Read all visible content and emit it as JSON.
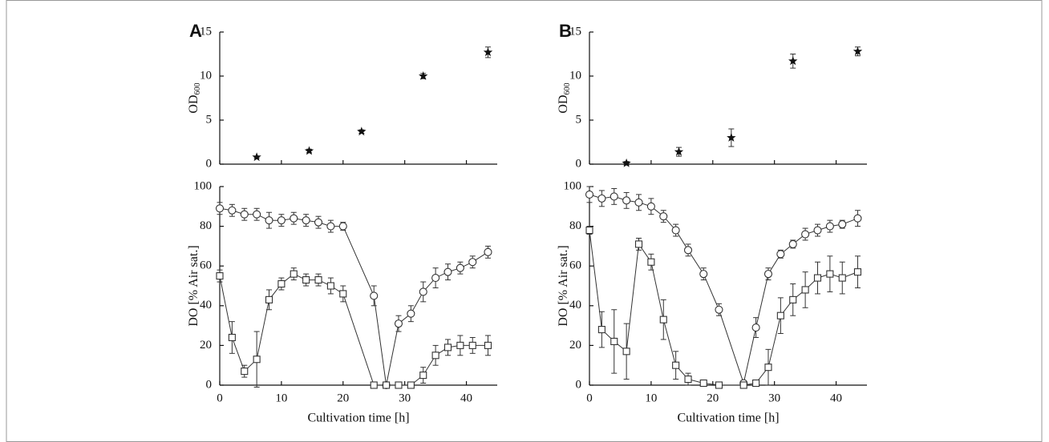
{
  "chart_data": [
    {
      "type": "scatter",
      "panel_label": "A",
      "ylabel": "OD",
      "ylabel_subscript": "600",
      "xlim": [
        0,
        45
      ],
      "xticks": [
        0,
        10,
        20,
        30,
        40
      ],
      "ylim": [
        0,
        15
      ],
      "yticks": [
        0,
        5,
        10,
        15
      ],
      "x": [
        6,
        14.5,
        23,
        33,
        43.5
      ],
      "series": [
        {
          "marker": "star",
          "color": "#111111",
          "values": [
            0.8,
            1.5,
            3.7,
            10.0,
            12.7
          ],
          "errors": [
            0.1,
            0.2,
            0.2,
            0.3,
            0.6
          ]
        }
      ]
    },
    {
      "type": "line",
      "xlabel": "Cultivation time [h]",
      "ylabel": "DO [% Air sat.]",
      "xlim": [
        0,
        45
      ],
      "xticks": [
        0,
        10,
        20,
        30,
        40
      ],
      "ylim": [
        0,
        100
      ],
      "yticks": [
        0,
        20,
        40,
        60,
        80,
        100
      ],
      "x": [
        0,
        2,
        4,
        6,
        8,
        10,
        12,
        14,
        16,
        18,
        20,
        25,
        27,
        29,
        31,
        33,
        35,
        37,
        39,
        41,
        43.5
      ],
      "series": [
        {
          "marker": "circle",
          "color": "#333333",
          "values": [
            89,
            88,
            86,
            86,
            83,
            83,
            84,
            83,
            82,
            80,
            80,
            45,
            0,
            31,
            36,
            47,
            54,
            57,
            59,
            62,
            67
          ],
          "errors": [
            3,
            3,
            3,
            3,
            4,
            3,
            3,
            3,
            3,
            3,
            2,
            5,
            0,
            4,
            4,
            5,
            5,
            4,
            3,
            3,
            3
          ]
        },
        {
          "marker": "square",
          "color": "#333333",
          "values": [
            55,
            24,
            7,
            13,
            43,
            51,
            56,
            53,
            53,
            50,
            46,
            0,
            0,
            0,
            0,
            5,
            15,
            19,
            20,
            20,
            20
          ],
          "errors": [
            3,
            8,
            3,
            14,
            5,
            3,
            3,
            3,
            3,
            4,
            4,
            0,
            0,
            0,
            0,
            4,
            5,
            4,
            5,
            4,
            5
          ]
        }
      ]
    },
    {
      "type": "scatter",
      "panel_label": "B",
      "ylabel": "OD",
      "ylabel_subscript": "600",
      "xlim": [
        0,
        45
      ],
      "xticks": [
        0,
        10,
        20,
        30,
        40
      ],
      "ylim": [
        0,
        15
      ],
      "yticks": [
        0,
        5,
        10,
        15
      ],
      "x": [
        6,
        14.5,
        23,
        33,
        43.5
      ],
      "series": [
        {
          "marker": "star",
          "color": "#111111",
          "values": [
            0.1,
            1.4,
            3.0,
            11.7,
            12.8
          ],
          "errors": [
            0.2,
            0.5,
            1.0,
            0.8,
            0.5
          ]
        }
      ]
    },
    {
      "type": "line",
      "xlabel": "Cultivation time [h]",
      "ylabel": "DO [% Air sat.]",
      "xlim": [
        0,
        45
      ],
      "xticks": [
        0,
        10,
        20,
        30,
        40
      ],
      "ylim": [
        0,
        100
      ],
      "yticks": [
        0,
        20,
        40,
        60,
        80,
        100
      ],
      "x": [
        0,
        2,
        4,
        6,
        8,
        10,
        12,
        14,
        16,
        18.5,
        21,
        25,
        27,
        29,
        31,
        33,
        35,
        37,
        39,
        41,
        43.5
      ],
      "series": [
        {
          "marker": "circle",
          "color": "#333333",
          "values": [
            96,
            94,
            95,
            93,
            92,
            90,
            85,
            78,
            68,
            56,
            38,
            1,
            29,
            56,
            66,
            71,
            76,
            78,
            80,
            81,
            84
          ],
          "errors": [
            4,
            4,
            4,
            4,
            4,
            4,
            3,
            3,
            3,
            3,
            3,
            1,
            5,
            3,
            2,
            2,
            3,
            3,
            3,
            2,
            4
          ]
        },
        {
          "marker": "square",
          "color": "#333333",
          "values": [
            78,
            28,
            22,
            17,
            71,
            62,
            33,
            10,
            3,
            1,
            0,
            0,
            1,
            9,
            35,
            43,
            48,
            54,
            56,
            54,
            57
          ],
          "errors": [
            2,
            9,
            16,
            14,
            3,
            4,
            10,
            7,
            3,
            1,
            0,
            1,
            1,
            9,
            9,
            8,
            9,
            8,
            9,
            8,
            8
          ]
        }
      ]
    }
  ]
}
